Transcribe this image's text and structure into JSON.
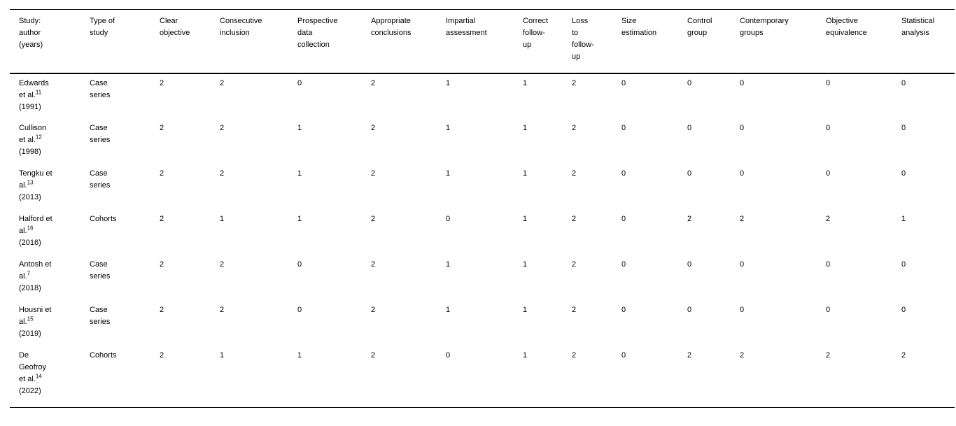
{
  "colors": {
    "background": "#ffffff",
    "text": "#000000",
    "rule": "#000000"
  },
  "table": {
    "columns": [
      {
        "label": "Study:\nauthor\n(years)"
      },
      {
        "label": "Type of\nstudy"
      },
      {
        "label": "Clear\nobjective"
      },
      {
        "label": "Consecutive\ninclusion"
      },
      {
        "label": "Prospective\ndata\ncollection"
      },
      {
        "label": "Appropriate\nconclusions"
      },
      {
        "label": "Impartial\nassessment"
      },
      {
        "label": "Correct\nfollow-\nup"
      },
      {
        "label": "Loss\nto\nfollow-\nup"
      },
      {
        "label": "Size\nestimation"
      },
      {
        "label": "Control\ngroup"
      },
      {
        "label": "Contemporary\ngroups"
      },
      {
        "label": "Objective\nequivalence"
      },
      {
        "label": "Statistical\nanalysis"
      }
    ],
    "rows": [
      {
        "author": "Edwards et al.",
        "ref": "11",
        "year": "(1991)",
        "type": "Case series",
        "scores": [
          2,
          2,
          0,
          2,
          1,
          1,
          2,
          0,
          0,
          0,
          0,
          0
        ]
      },
      {
        "author": "Cullison et al.",
        "ref": "12",
        "year": "(1998)",
        "type": "Case series",
        "scores": [
          2,
          2,
          1,
          2,
          1,
          1,
          2,
          0,
          0,
          0,
          0,
          0
        ]
      },
      {
        "author": "Tengku et al.",
        "ref": "13",
        "year": "(2013)",
        "type": "Case series",
        "scores": [
          2,
          2,
          1,
          2,
          1,
          1,
          2,
          0,
          0,
          0,
          0,
          0
        ]
      },
      {
        "author": "Halford et al.",
        "ref": "16",
        "year": "(2016)",
        "type": "Cohorts",
        "scores": [
          2,
          1,
          1,
          2,
          0,
          1,
          2,
          0,
          2,
          2,
          2,
          1
        ]
      },
      {
        "author": "Antosh et al.",
        "ref": "7",
        "year": "(2018)",
        "type": "Case series",
        "scores": [
          2,
          2,
          0,
          2,
          1,
          1,
          2,
          0,
          0,
          0,
          0,
          0
        ]
      },
      {
        "author": "Housni et al.",
        "ref": "15",
        "year": "(2019)",
        "type": "Case series",
        "scores": [
          2,
          2,
          0,
          2,
          1,
          1,
          2,
          0,
          0,
          0,
          0,
          0
        ]
      },
      {
        "author": "De Geofroy et al.",
        "ref": "14",
        "year": "(2022)",
        "type": "Cohorts",
        "scores": [
          2,
          1,
          1,
          2,
          0,
          1,
          2,
          0,
          2,
          2,
          2,
          2
        ]
      }
    ]
  }
}
